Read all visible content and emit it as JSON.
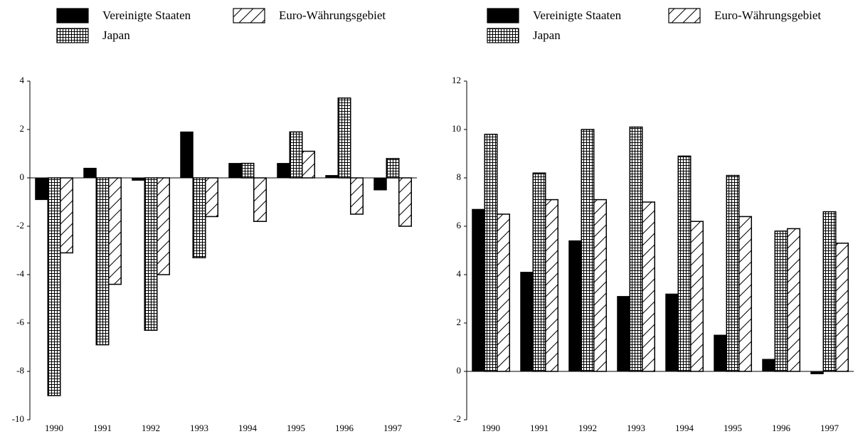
{
  "chart_data": [
    {
      "type": "bar",
      "categories": [
        "1990",
        "1991",
        "1992",
        "1993",
        "1994",
        "1995",
        "1996",
        "1997"
      ],
      "series": [
        {
          "name": "Vereinigte Staaten",
          "color": "#000000",
          "pattern": "solid",
          "values": [
            -0.9,
            0.4,
            -0.1,
            1.9,
            0.6,
            0.6,
            0.1,
            -0.5
          ]
        },
        {
          "name": "Japan",
          "color": "#000000",
          "pattern": "grid",
          "values": [
            -9.0,
            -6.9,
            -6.3,
            -3.3,
            0.6,
            1.9,
            3.3,
            0.8
          ]
        },
        {
          "name": "Euro-Währungsgebiet",
          "color": "#000000",
          "pattern": "diagonal",
          "values": [
            -3.1,
            -4.4,
            -4.0,
            -1.6,
            -1.8,
            1.1,
            -1.5,
            -2.0
          ]
        }
      ],
      "ylim": [
        -10,
        4
      ],
      "yticks": [
        -10,
        -8,
        -6,
        -4,
        -2,
        0,
        2,
        4
      ]
    },
    {
      "type": "bar",
      "categories": [
        "1990",
        "1991",
        "1992",
        "1993",
        "1994",
        "1995",
        "1996",
        "1997"
      ],
      "series": [
        {
          "name": "Vereinigte Staaten",
          "color": "#000000",
          "pattern": "solid",
          "values": [
            6.7,
            4.1,
            5.4,
            3.1,
            3.2,
            1.5,
            0.5,
            -0.1
          ]
        },
        {
          "name": "Japan",
          "color": "#000000",
          "pattern": "grid",
          "values": [
            9.8,
            8.2,
            10.0,
            10.1,
            8.9,
            8.1,
            5.8,
            6.6
          ]
        },
        {
          "name": "Euro-Währungsgebiet",
          "color": "#000000",
          "pattern": "diagonal",
          "values": [
            6.5,
            7.1,
            7.1,
            7.0,
            6.2,
            6.4,
            5.9,
            5.3
          ]
        }
      ],
      "ylim": [
        -2,
        12
      ],
      "yticks": [
        -2,
        0,
        2,
        4,
        6,
        8,
        10,
        12
      ]
    }
  ]
}
